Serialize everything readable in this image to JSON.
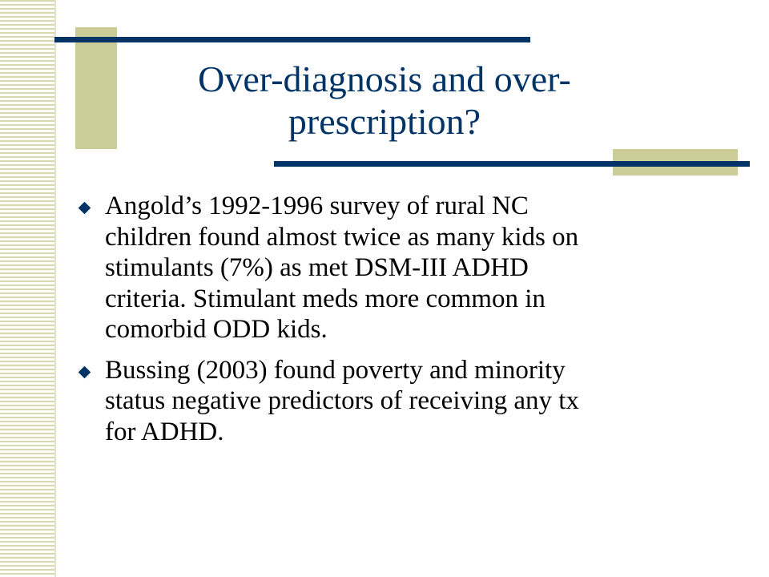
{
  "slide": {
    "title_lines": [
      "Over-diagnosis and over-",
      "prescription?"
    ],
    "bullets": [
      {
        "lines": [
          "Angold’s 1992-1996 survey of rural NC",
          "children found almost twice as many kids on",
          "stimulants (7%) as met DSM-III ADHD",
          "criteria. Stimulant meds more common in",
          "comorbid ODD kids."
        ]
      },
      {
        "lines": [
          "Bussing (2003) found poverty and minority",
          "status negative predictors of receiving any tx",
          "for ADHD."
        ]
      }
    ]
  },
  "theme": {
    "title_color": "#003366",
    "accent_navy": "#003366",
    "accent_olive": "#cccc99",
    "stripe_color": "#d9d9b0",
    "bullet_icon": "diamond-bullet-icon"
  }
}
